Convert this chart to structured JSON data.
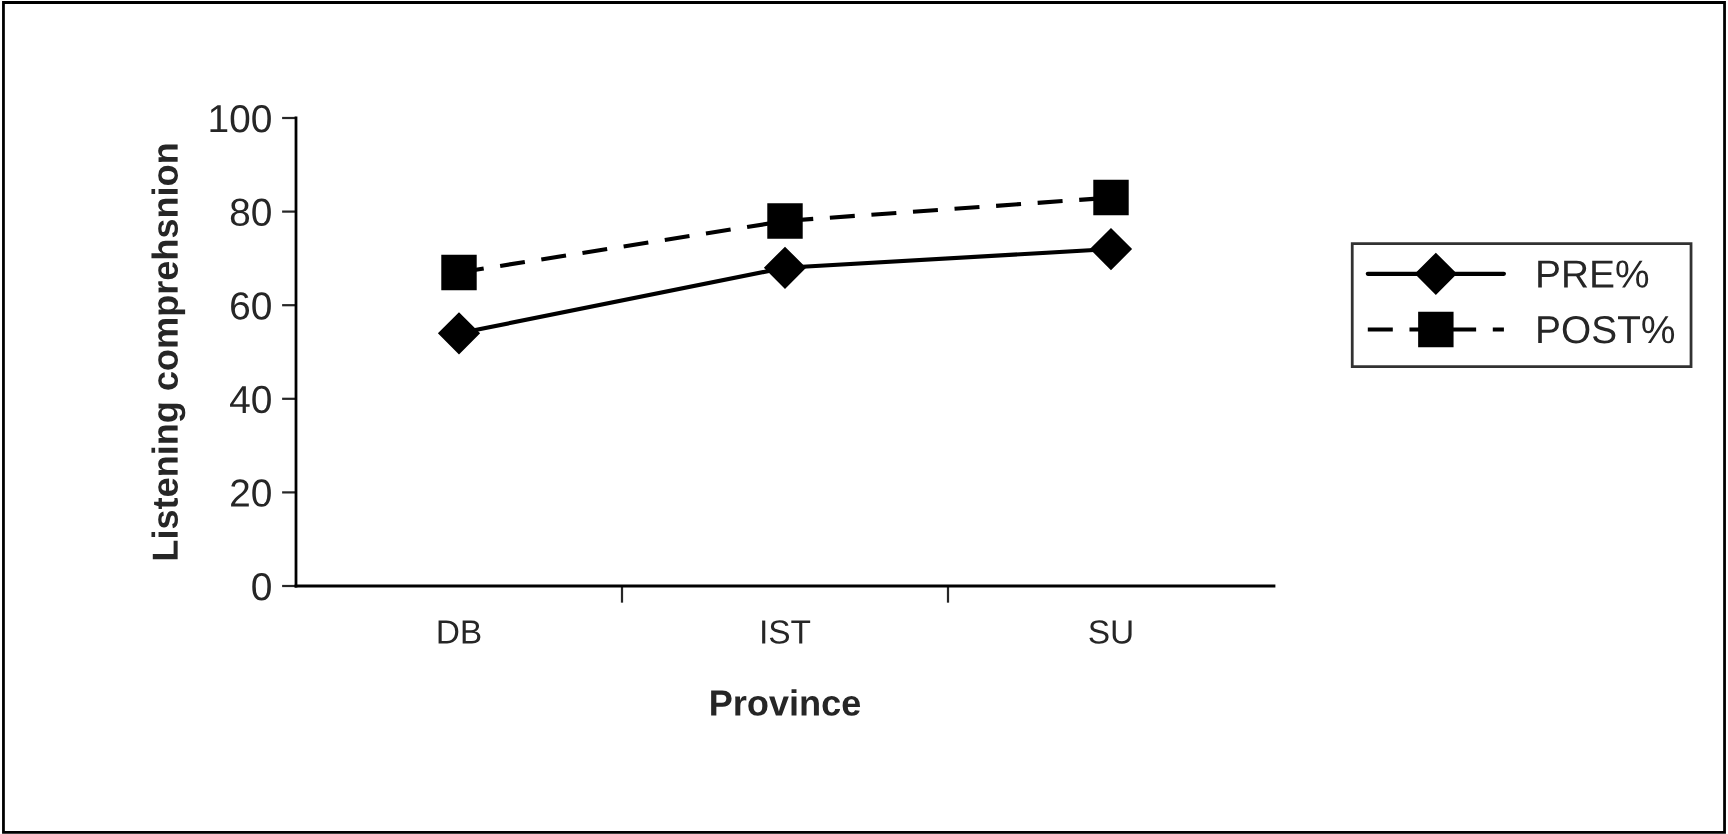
{
  "chart_data": {
    "type": "line",
    "xlabel": "Province",
    "ylabel": "Listening comprehsnion",
    "categories": [
      "DB",
      "IST",
      "SU"
    ],
    "series": [
      {
        "name": "PRE%",
        "color": "#000000",
        "marker": "diamond",
        "line_style": "solid",
        "values": [
          54,
          68,
          72
        ]
      },
      {
        "name": "POST%",
        "color": "#000000",
        "marker": "square",
        "line_style": "dashed",
        "values": [
          67,
          78,
          83
        ]
      }
    ],
    "ylim": [
      0,
      100
    ],
    "yticks": [
      0,
      20,
      40,
      60,
      80,
      100
    ],
    "grid": false,
    "legend": "right"
  }
}
